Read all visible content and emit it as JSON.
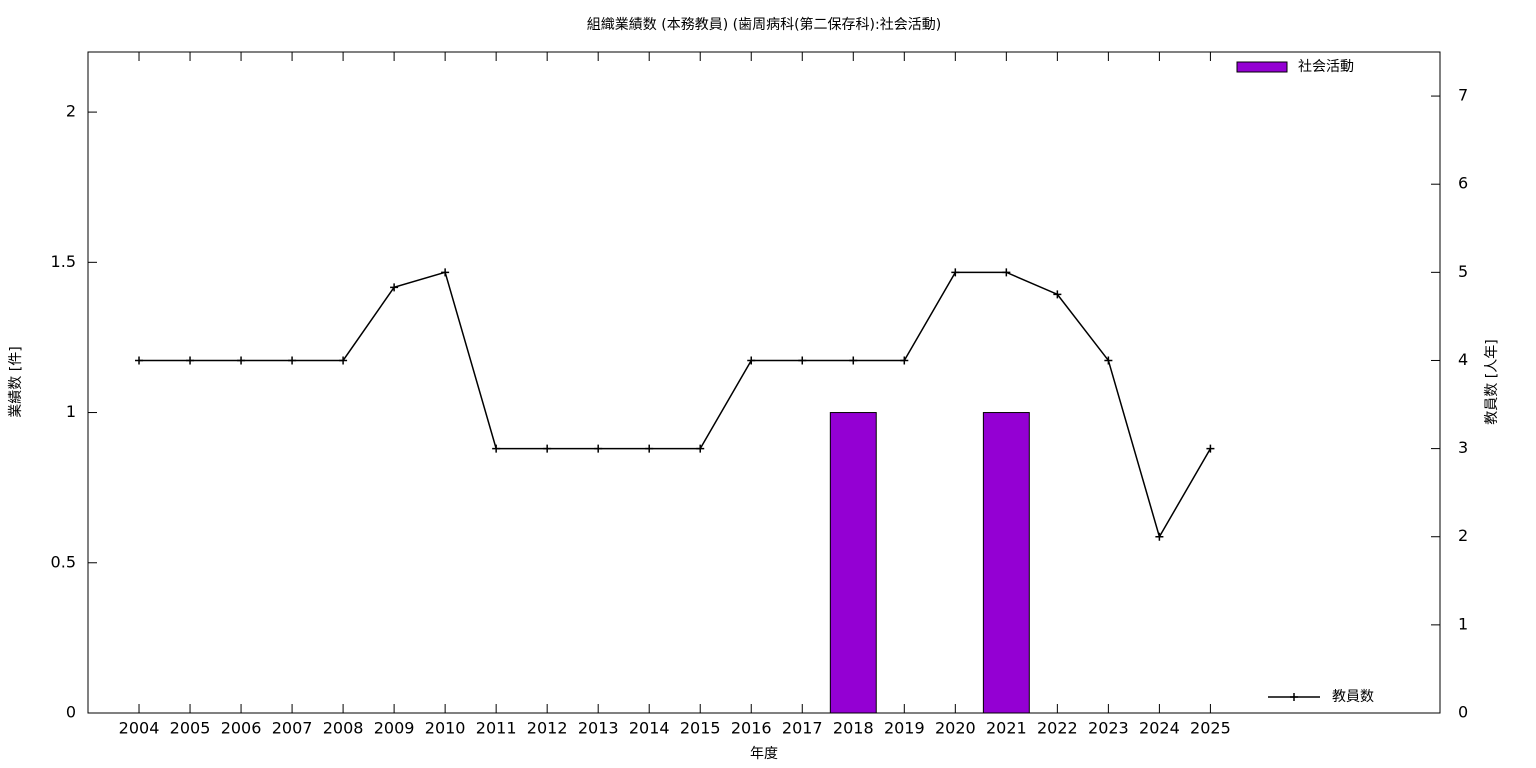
{
  "chart_data": {
    "type": "bar",
    "title": "組織業績数 (本務教員) (歯周病科(第二保存科):社会活動)",
    "xlabel": "年度",
    "ylabel": "業績数 [件]",
    "y2label": "教員数 [人年]",
    "x": [
      2004,
      2005,
      2006,
      2007,
      2008,
      2009,
      2010,
      2011,
      2012,
      2013,
      2014,
      2015,
      2016,
      2017,
      2018,
      2019,
      2020,
      2021,
      2022,
      2023,
      2024,
      2025
    ],
    "xlim": [
      2003,
      2029.5
    ],
    "xticks": [
      2004,
      2005,
      2006,
      2007,
      2008,
      2009,
      2010,
      2011,
      2012,
      2013,
      2014,
      2015,
      2016,
      2017,
      2018,
      2019,
      2020,
      2021,
      2022,
      2023,
      2024,
      2025
    ],
    "ylim": [
      0,
      2.2
    ],
    "yticks": [
      0,
      0.5,
      1,
      1.5,
      2
    ],
    "y2lim": [
      0,
      7.5
    ],
    "y2ticks": [
      0,
      1,
      2,
      3,
      4,
      5,
      6,
      7
    ],
    "series": [
      {
        "name": "社会活動",
        "type": "bar",
        "color": "#9400d3",
        "legend": "top right",
        "values": [
          0,
          0,
          0,
          0,
          0,
          0,
          0,
          0,
          0,
          0,
          0,
          0,
          0,
          0,
          1,
          0,
          0,
          1,
          0,
          0,
          0,
          0
        ]
      },
      {
        "name": "教員数",
        "type": "line",
        "axis": "y2",
        "color": "#000000",
        "legend": "bottom right",
        "values": [
          4,
          4,
          4,
          4,
          4,
          4.83,
          5,
          3,
          3,
          3,
          3,
          3,
          4,
          4,
          4,
          4,
          5,
          5,
          4.75,
          4,
          2,
          3
        ]
      }
    ]
  }
}
